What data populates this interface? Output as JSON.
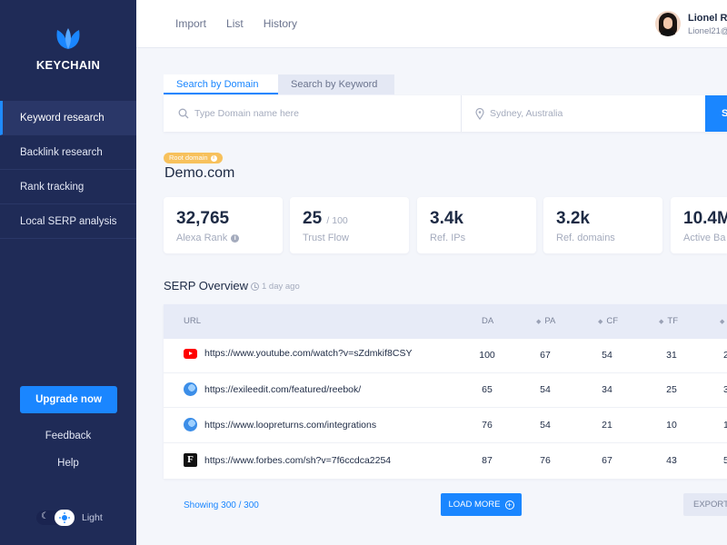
{
  "app": {
    "name": "KEYCHAIN"
  },
  "sidebar": {
    "items": [
      {
        "label": "Keyword research",
        "active": true
      },
      {
        "label": "Backlink research"
      },
      {
        "label": "Rank tracking"
      },
      {
        "label": "Local SERP analysis"
      }
    ],
    "upgrade_label": "Upgrade now",
    "feedback_label": "Feedback",
    "help_label": "Help",
    "theme_label": "Light"
  },
  "topnav": [
    "Import",
    "List",
    "History"
  ],
  "user": {
    "name": "Lionel Ro",
    "email": "Lionel21@"
  },
  "search": {
    "tabs": [
      "Search by Domain",
      "Search by Keyword"
    ],
    "domain_placeholder": "Type Domain name here",
    "location_placeholder": "Sydney, Australia",
    "button_label": "S"
  },
  "domain": {
    "badge": "Root domain",
    "name": "Demo.com"
  },
  "stats": [
    {
      "value": "32,765",
      "suffix": "",
      "label": "Alexa Rank",
      "info": true
    },
    {
      "value": "25",
      "suffix": "/ 100",
      "label": "Trust Flow"
    },
    {
      "value": "3.4k",
      "suffix": "",
      "label": "Ref. IPs"
    },
    {
      "value": "3.2k",
      "suffix": "",
      "label": "Ref. domains"
    },
    {
      "value": "10.4M",
      "suffix": "",
      "label": "Active Ba"
    }
  ],
  "serp": {
    "title": "SERP Overview",
    "updated": "1 day ago",
    "columns": [
      "URL",
      "DA",
      "PA",
      "CF",
      "TF",
      ""
    ],
    "rows": [
      {
        "icon": "youtube-icon",
        "url": "https://www.youtube.com/watch?v=sZdmkif8CSY",
        "da": "100",
        "pa": "67",
        "cf": "54",
        "tf": "31",
        "extra": "2"
      },
      {
        "icon": "globe-icon",
        "url": "https://exileedit.com/featured/reebok/",
        "da": "65",
        "pa": "54",
        "cf": "34",
        "tf": "25",
        "extra": "3"
      },
      {
        "icon": "globe-icon",
        "url": "https://www.loopreturns.com/integrations",
        "da": "76",
        "pa": "54",
        "cf": "21",
        "tf": "10",
        "extra": "1"
      },
      {
        "icon": "forbes-icon",
        "url": "https://www.forbes.com/sh?v=7f6ccdca2254",
        "da": "87",
        "pa": "76",
        "cf": "67",
        "tf": "43",
        "extra": "5"
      }
    ],
    "showing": "Showing 300 / 300",
    "load_more_label": "LOAD MORE",
    "export_label": "EXPORT"
  },
  "colors": {
    "sidebar": "#1f2b57",
    "accent": "#1a86ff",
    "badge": "#f7c15c",
    "background": "#f4f6fb"
  }
}
